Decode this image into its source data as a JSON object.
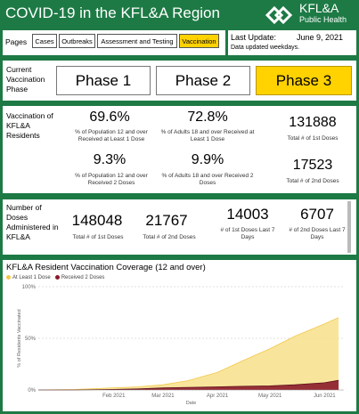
{
  "header": {
    "title": "COVID-19 in the KFL&A Region",
    "logo_name": "KFL&A",
    "logo_sub": "Public Health"
  },
  "nav": {
    "label": "Pages",
    "items": [
      "Cases",
      "Outbreaks",
      "Assessment and Testing",
      "Vaccination"
    ],
    "active": "Vaccination"
  },
  "update": {
    "label": "Last Update:",
    "date": "June 9, 2021",
    "note": "Data updated weekdays."
  },
  "phase": {
    "label": "Current Vaccination Phase",
    "items": [
      "Phase 1",
      "Phase 2",
      "Phase 3"
    ],
    "active": "Phase 3",
    "active_color": "#ffd200"
  },
  "residents": {
    "label": "Vaccination of KFL&A Residents",
    "pop12_1dose": "69.6%",
    "pop12_1dose_desc": "% of Population 12 and over Received at Least 1 Dose",
    "adults18_1dose": "72.8%",
    "adults18_1dose_desc": "% of Adults 18 and over Received at Least 1 Dose",
    "total_1st": "131888",
    "total_1st_desc": "Total # of 1st Doses",
    "pop12_2dose": "9.3%",
    "pop12_2dose_desc": "% of Population 12 and over Received 2 Doses",
    "adults18_2dose": "9.9%",
    "adults18_2dose_desc": "% of Adults 18 and over Received 2 Doses",
    "total_2nd": "17523",
    "total_2nd_desc": "Total # of 2nd Doses"
  },
  "doses": {
    "label": "Number of Doses Administered in KFL&A",
    "total_1st": "148048",
    "total_1st_desc": "Total # of 1st Doses",
    "total_2nd": "21767",
    "total_2nd_desc": "Total # of 2nd Doses",
    "last7_1st": "14003",
    "last7_1st_desc": "# of 1st Doses Last 7 Days",
    "last7_2nd": "6707",
    "last7_2nd_desc": "# of 2nd Doses Last 7 Days"
  },
  "colors": {
    "brand_green": "#1d7a45",
    "accent_yellow": "#ffd200",
    "series_1dose": "#f7e08a",
    "series_2dose": "#8b1a2b"
  },
  "chart_data": {
    "type": "area",
    "title": "KFL&A Resident Vaccination Coverage (12 and over)",
    "xlabel": "Date",
    "ylabel": "% of Residents Vaccinated",
    "ylim": [
      0,
      100
    ],
    "yticks": [
      "0%",
      "50%",
      "100%"
    ],
    "xticks": [
      "Feb 2021",
      "Mar 2021",
      "Apr 2021",
      "May 2021",
      "Jun 2021"
    ],
    "legend_position": "top-left",
    "x": [
      "2020-12-20",
      "2021-01-10",
      "2021-02-01",
      "2021-02-15",
      "2021-03-01",
      "2021-03-15",
      "2021-04-01",
      "2021-04-15",
      "2021-05-01",
      "2021-05-15",
      "2021-06-01",
      "2021-06-09"
    ],
    "series": [
      {
        "name": "At Least 1 Dose",
        "values": [
          0,
          0.5,
          2,
          3,
          5,
          9,
          17,
          28,
          40,
          52,
          64,
          70
        ]
      },
      {
        "name": "Received 2 Doses",
        "values": [
          0,
          0,
          0.5,
          1,
          2,
          2.5,
          3,
          3.5,
          4,
          5,
          7,
          9.3
        ]
      }
    ]
  }
}
